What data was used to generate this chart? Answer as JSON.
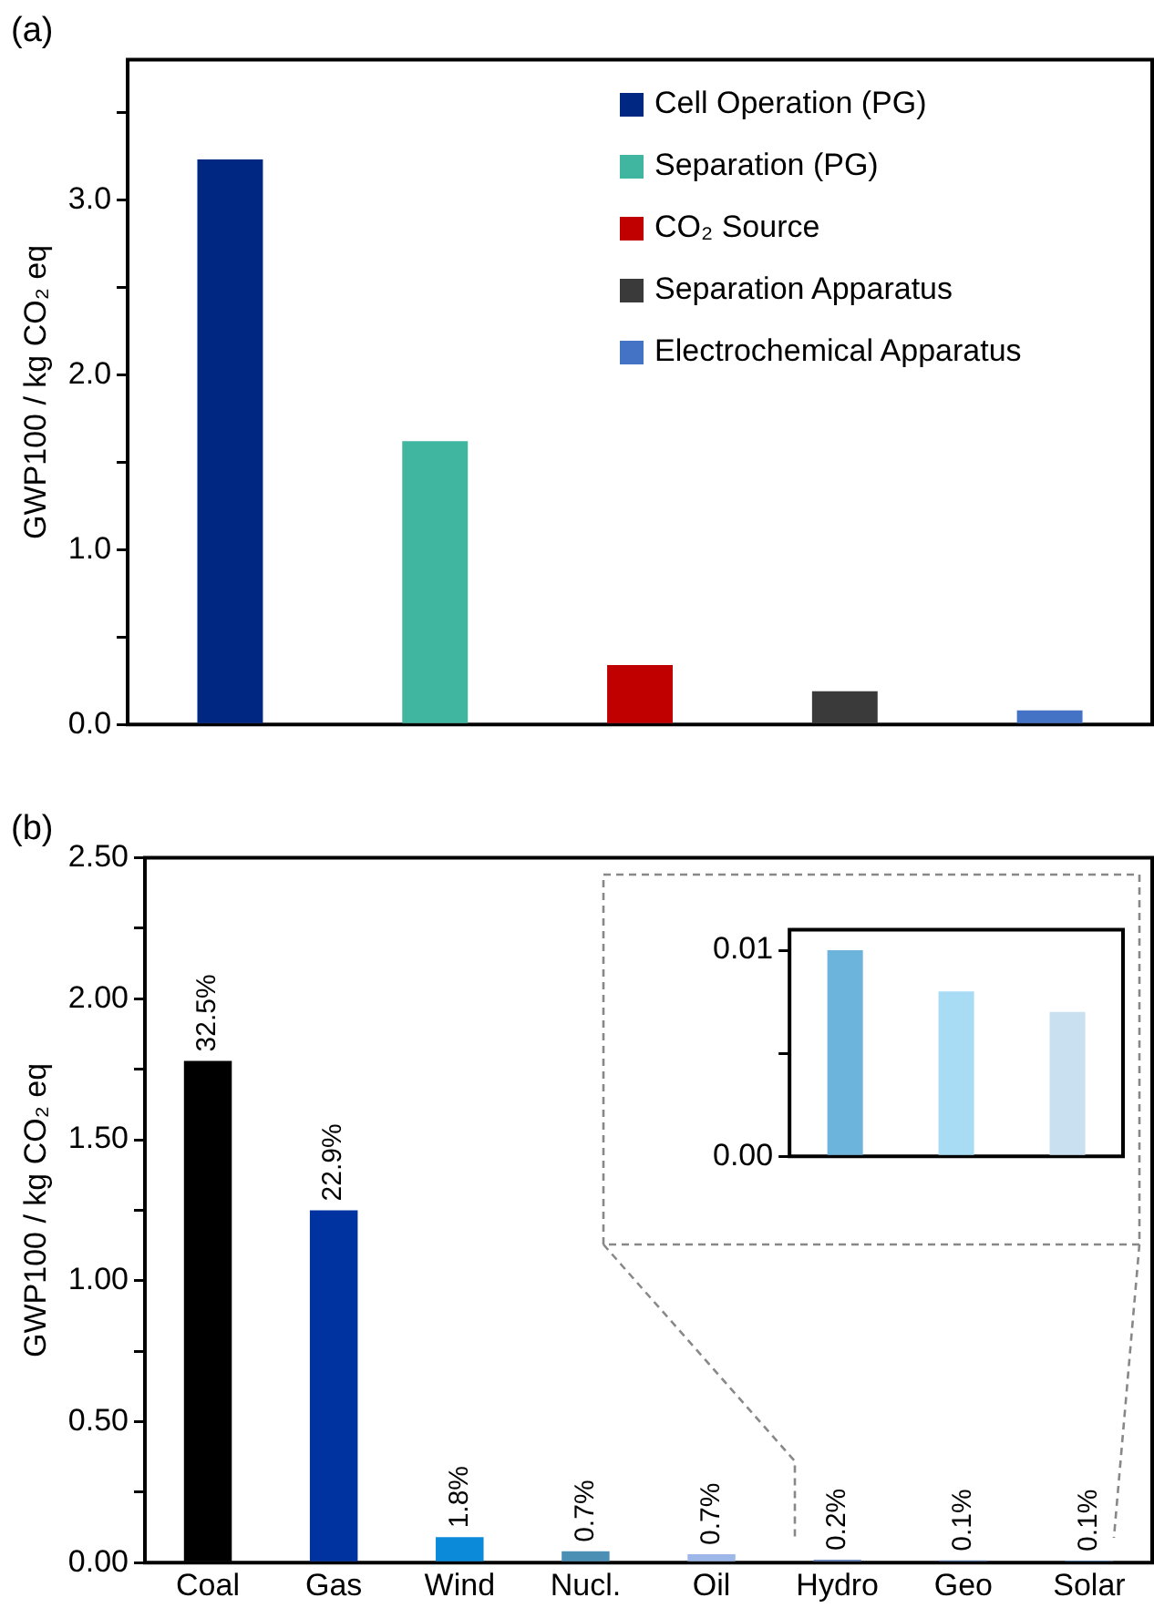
{
  "chart_data": [
    {
      "type": "bar",
      "title": "(a)",
      "ylabel": "GWP100 / kg CO₂ eq",
      "categories": [
        null,
        null,
        null,
        null,
        null
      ],
      "series": [
        {
          "name": "Cell Operation (PG)",
          "color": "#002882",
          "values": [
            3.23,
            null,
            null,
            null,
            null
          ]
        },
        {
          "name": "Separation (PG)",
          "color": "#40b5a0",
          "values": [
            null,
            1.62,
            null,
            null,
            null
          ]
        },
        {
          "name": "CO₂ Source",
          "color": "#c00000",
          "values": [
            null,
            null,
            0.34,
            null,
            null
          ]
        },
        {
          "name": "Separation Apparatus",
          "color": "#3a3a3a",
          "values": [
            null,
            null,
            null,
            0.19,
            null
          ]
        },
        {
          "name": "Electrochemical Apparatus",
          "color": "#4472c4",
          "values": [
            null,
            null,
            null,
            null,
            0.08
          ]
        }
      ],
      "stacked": true,
      "ylim": [
        0,
        3.8
      ],
      "yticks": [
        {
          "value": 0,
          "label": "0.0"
        },
        {
          "value": 0.5,
          "label": null
        },
        {
          "value": 1,
          "label": "1.0"
        },
        {
          "value": 1.5,
          "label": null
        },
        {
          "value": 2,
          "label": "2.0"
        },
        {
          "value": 2.5,
          "label": null
        },
        {
          "value": 3,
          "label": "3.0"
        },
        {
          "value": 3.5,
          "label": null
        }
      ],
      "grid": false,
      "legend": "top right"
    },
    {
      "type": "bar",
      "title": "(b)",
      "ylabel": "GWP100 / kg CO₂ eq",
      "categories": [
        "Coal",
        "Gas",
        "Wind",
        "Nucl.",
        "Oil",
        "Hydro",
        "Geo",
        "Solar"
      ],
      "values": [
        1.78,
        1.25,
        0.09,
        0.04,
        0.03,
        0.01,
        0.008,
        0.007
      ],
      "colors": [
        "#000000",
        "#0033a0",
        "#0a8ad8",
        "#4b8fb5",
        "#9db8e8",
        "#6a8ac0",
        "#5b7ab0",
        "#5478aa"
      ],
      "annotations": [
        {
          "text": "32.5%",
          "x": "Coal",
          "y": 1.78
        },
        {
          "text": "22.9%",
          "x": "Gas",
          "y": 1.25
        },
        {
          "text": "1.8%",
          "x": "Wind",
          "y": 0.09
        },
        {
          "text": "0.7%",
          "x": "Nucl.",
          "y": 0.04
        },
        {
          "text": "0.7%",
          "x": "Oil",
          "y": 0.03
        },
        {
          "text": "0.2%",
          "x": "Hydro",
          "y": 0.01
        },
        {
          "text": "0.1%",
          "x": "Geo",
          "y": 0.008
        },
        {
          "text": "0.1%",
          "x": "Solar",
          "y": 0.007
        }
      ],
      "ylim": [
        0,
        2.5
      ],
      "yticks": [
        {
          "value": 0,
          "label": "0.00"
        },
        {
          "value": 0.25,
          "label": null
        },
        {
          "value": 0.5,
          "label": "0.50"
        },
        {
          "value": 0.75,
          "label": null
        },
        {
          "value": 1,
          "label": "1.00"
        },
        {
          "value": 1.25,
          "label": null
        },
        {
          "value": 1.5,
          "label": "1.50"
        },
        {
          "value": 1.75,
          "label": null
        },
        {
          "value": 2,
          "label": "2.00"
        },
        {
          "value": 2.25,
          "label": null
        },
        {
          "value": 2.5,
          "label": "2.50"
        }
      ],
      "grid": false
    },
    {
      "type": "bar",
      "categories": [
        null,
        null,
        null
      ],
      "values": [
        0.01,
        0.008,
        0.007
      ],
      "colors": [
        "#6cb4dc",
        "#a8dcf4",
        "#c8e0f0"
      ],
      "ylim": [
        0,
        0.011
      ],
      "yticks": [
        {
          "value": 0,
          "label": "0.00"
        },
        {
          "value": 0.005,
          "label": null
        },
        {
          "value": 0.01,
          "label": "0.01"
        }
      ],
      "grid": false
    }
  ]
}
